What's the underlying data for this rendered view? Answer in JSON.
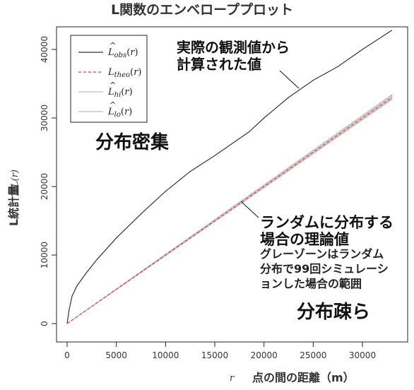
{
  "chart_data": {
    "type": "line",
    "title": "L関数のエンベローププロット",
    "xlabel_r": "r",
    "xlabel": "点の間の距離（m）",
    "ylabel_main": "L統計量",
    "ylabel_r": "L(r)",
    "xlim": [
      0,
      33000
    ],
    "ylim": [
      0,
      43500
    ],
    "x_ticks": [
      0,
      5000,
      10000,
      15000,
      20000,
      25000,
      30000
    ],
    "x_tick_labels": [
      "0",
      "5000",
      "10000",
      "15000",
      "20000",
      "25000",
      "30000"
    ],
    "y_ticks": [
      0,
      10000,
      20000,
      30000,
      40000
    ],
    "y_tick_labels": [
      "0",
      "10000",
      "20000",
      "30000",
      "40000"
    ],
    "legend_position": "top-left",
    "series": [
      {
        "name": "L̂obs(r)",
        "legend_base": "L",
        "legend_sub": "obs",
        "legend_hat": true,
        "style": "solid",
        "color": "#333333",
        "x": [
          0,
          200,
          500,
          1000,
          2000,
          3000,
          5000,
          7500,
          10000,
          12500,
          15000,
          17500,
          18500,
          20000,
          22500,
          25000,
          27500,
          30000,
          33000
        ],
        "y": [
          0,
          2000,
          4000,
          5500,
          7500,
          9300,
          12500,
          16000,
          19300,
          22200,
          24500,
          27000,
          28000,
          30000,
          33000,
          35500,
          37500,
          40000,
          42800
        ]
      },
      {
        "name": "Ltheo(r)",
        "legend_base": "L",
        "legend_sub": "theo",
        "legend_hat": false,
        "style": "dashed",
        "color": "#e04040",
        "x": [
          0,
          33000
        ],
        "y": [
          0,
          33000
        ]
      },
      {
        "name": "L̂hi(r)",
        "legend_base": "L",
        "legend_sub": "hi",
        "legend_hat": true,
        "style": "band",
        "color": "#c8c8c8",
        "x": [
          0,
          33000
        ],
        "y": [
          0,
          33400
        ]
      },
      {
        "name": "L̂lo(r)",
        "legend_base": "L",
        "legend_sub": "lo",
        "legend_hat": true,
        "style": "band",
        "color": "#c8c8c8",
        "x": [
          0,
          33000
        ],
        "y": [
          0,
          32700
        ]
      }
    ],
    "annotations": {
      "observed_line1": "実際の観測値から",
      "observed_line2": "計算された値",
      "clustered": "分布密集",
      "random_line1": "ランダムに分布する",
      "random_line2": "場合の理論値",
      "envelope_line1": "グレーゾーンはランダム",
      "envelope_line2": "分布で99回シミュレーシ",
      "envelope_line3": "ョンした場合の範囲",
      "dispersed": "分布疎ら"
    }
  }
}
